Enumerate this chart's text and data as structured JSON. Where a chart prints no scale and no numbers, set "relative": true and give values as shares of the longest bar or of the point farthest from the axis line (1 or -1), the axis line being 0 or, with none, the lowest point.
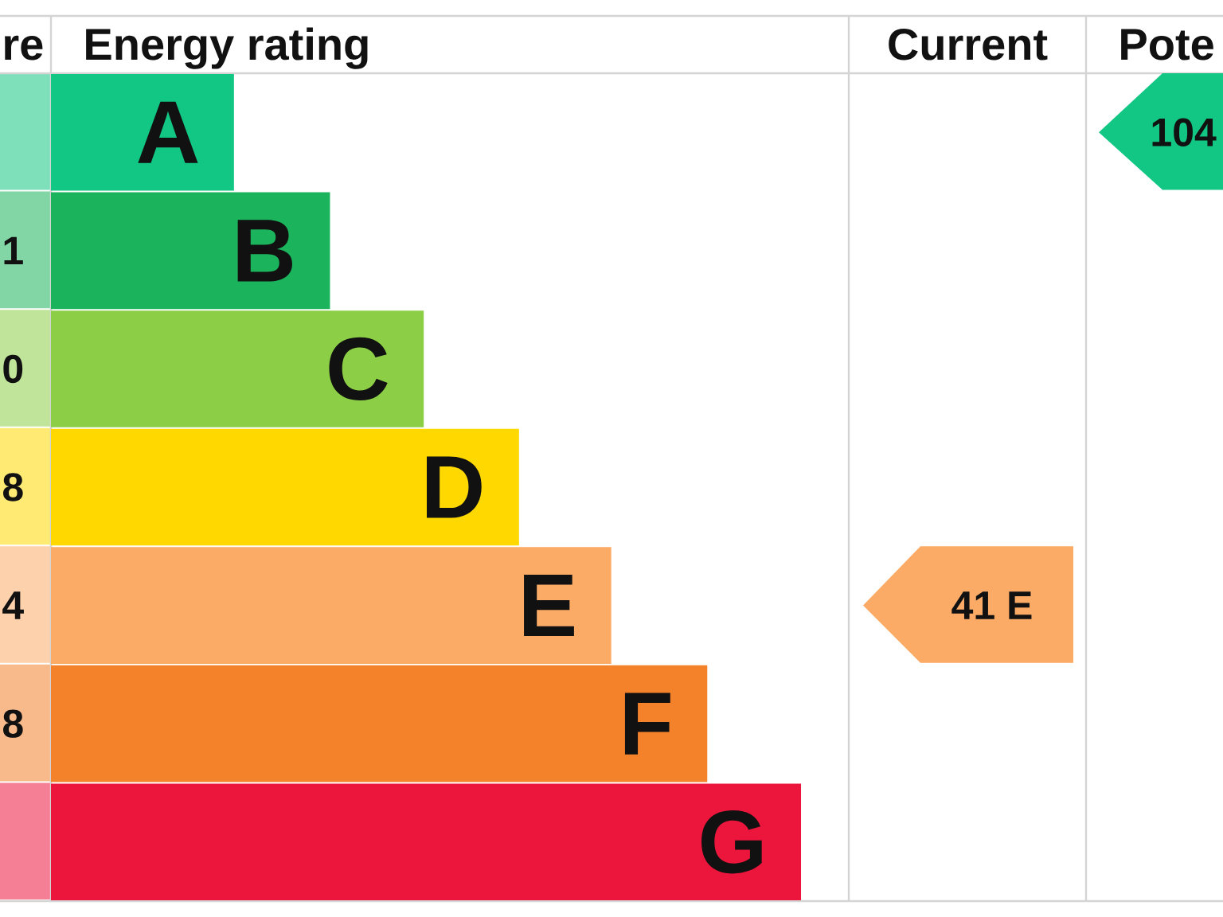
{
  "chart_data": {
    "type": "bar",
    "orientation": "horizontal",
    "relative": true,
    "title": "Energy rating",
    "categories": [
      "A",
      "B",
      "C",
      "D",
      "E",
      "F",
      "G"
    ],
    "values": [
      0.244,
      0.372,
      0.497,
      0.624,
      0.747,
      0.875,
      1
    ],
    "colors": [
      "#12c784",
      "#1bb35c",
      "#8cce46",
      "#ffd800",
      "#fcab66",
      "#f3822b",
      "#ec163c"
    ],
    "annotations": [
      "re",
      "1",
      "0",
      "8",
      "4",
      "8",
      "Current",
      "41 E",
      "Pote",
      "104"
    ]
  }
}
